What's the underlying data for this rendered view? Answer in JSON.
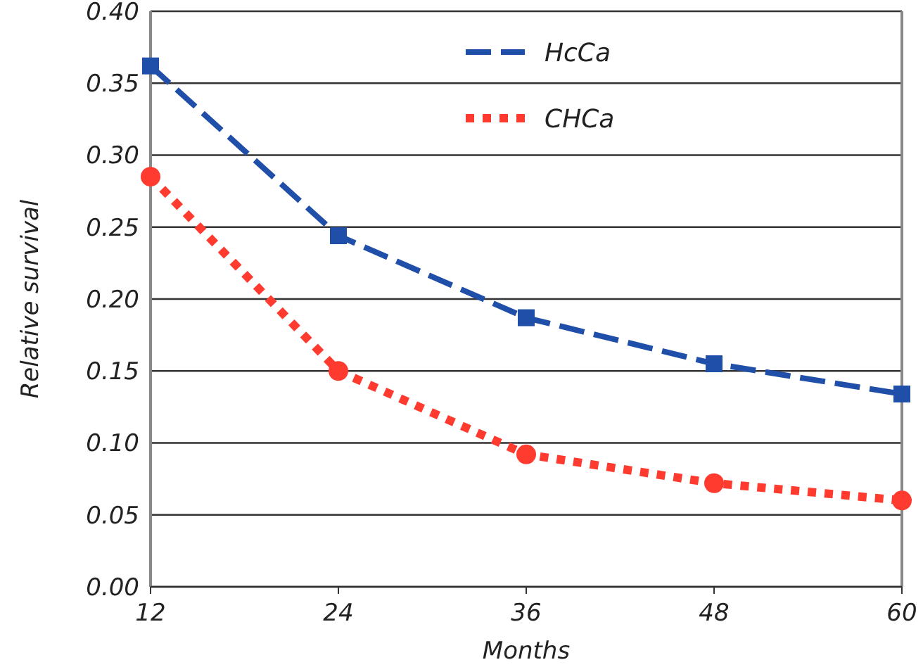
{
  "chart_data": {
    "type": "line",
    "xlabel": "Months",
    "ylabel": "Relative survival",
    "x": [
      12,
      24,
      36,
      48,
      60
    ],
    "series": [
      {
        "name": "HcCa",
        "color": "#1f4fa8",
        "values": [
          0.362,
          0.244,
          0.187,
          0.155,
          0.134
        ],
        "marker": "square",
        "line_style": "dashed"
      },
      {
        "name": "CHCa",
        "color": "#ff3b30",
        "values": [
          0.285,
          0.15,
          0.092,
          0.072,
          0.06
        ],
        "marker": "circle",
        "line_style": "dotted"
      }
    ],
    "xlim": [
      12,
      60
    ],
    "xticks": [
      12,
      24,
      36,
      48,
      60
    ],
    "ylim": [
      0,
      0.4
    ],
    "yticks": [
      {
        "value": 0,
        "label": "0.00"
      },
      {
        "value": 0.05,
        "label": "0.05"
      },
      {
        "value": 0.1,
        "label": "0.10"
      },
      {
        "value": 0.15,
        "label": "0.15"
      },
      {
        "value": 0.2,
        "label": "0.20"
      },
      {
        "value": 0.25,
        "label": "0.25"
      },
      {
        "value": 0.3,
        "label": "0.30"
      },
      {
        "value": 0.35,
        "label": "0.35"
      },
      {
        "value": 0.4,
        "label": "0.40"
      }
    ],
    "grid": "y",
    "legend": "top right"
  }
}
